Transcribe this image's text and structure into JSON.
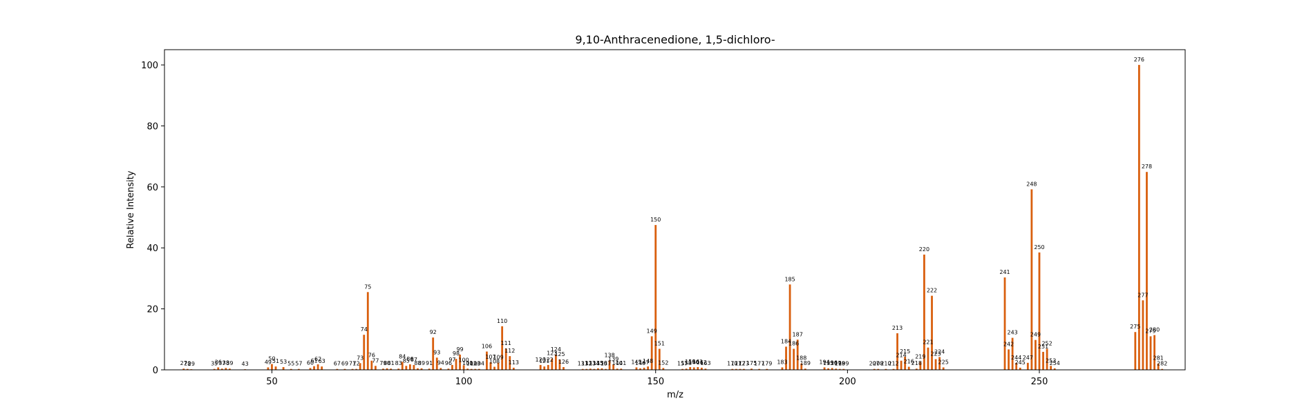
{
  "chart_data": {
    "type": "bar",
    "title": "9,10-Anthracenedione, 1,5-dichloro-",
    "xlabel": "m/z",
    "ylabel": "Relative Intensity",
    "xlim": [
      22,
      288
    ],
    "ylim": [
      0,
      105
    ],
    "xticks": [
      50,
      100,
      150,
      200,
      250
    ],
    "yticks": [
      0,
      20,
      40,
      60,
      80,
      100
    ],
    "grid": false,
    "bar_color": "#d95f0e",
    "peaks": [
      {
        "mz": 27,
        "intensity": 0.4
      },
      {
        "mz": 28,
        "intensity": 0.3
      },
      {
        "mz": 29,
        "intensity": 0.2
      },
      {
        "mz": 35,
        "intensity": 0.3
      },
      {
        "mz": 36,
        "intensity": 0.8
      },
      {
        "mz": 37,
        "intensity": 0.4
      },
      {
        "mz": 38,
        "intensity": 0.6
      },
      {
        "mz": 39,
        "intensity": 0.4
      },
      {
        "mz": 43,
        "intensity": 0.2
      },
      {
        "mz": 49,
        "intensity": 0.8
      },
      {
        "mz": 50,
        "intensity": 1.9
      },
      {
        "mz": 51,
        "intensity": 1.1
      },
      {
        "mz": 53,
        "intensity": 0.9
      },
      {
        "mz": 55,
        "intensity": 0.3
      },
      {
        "mz": 57,
        "intensity": 0.3
      },
      {
        "mz": 60,
        "intensity": 0.6
      },
      {
        "mz": 61,
        "intensity": 1.2
      },
      {
        "mz": 62,
        "intensity": 1.8
      },
      {
        "mz": 63,
        "intensity": 1.1
      },
      {
        "mz": 67,
        "intensity": 0.3
      },
      {
        "mz": 69,
        "intensity": 0.3
      },
      {
        "mz": 71,
        "intensity": 0.3
      },
      {
        "mz": 72,
        "intensity": 0.3
      },
      {
        "mz": 73,
        "intensity": 2.2
      },
      {
        "mz": 74,
        "intensity": 11.5
      },
      {
        "mz": 75,
        "intensity": 25.5
      },
      {
        "mz": 76,
        "intensity": 3.0
      },
      {
        "mz": 77,
        "intensity": 1.3
      },
      {
        "mz": 79,
        "intensity": 0.4
      },
      {
        "mz": 80,
        "intensity": 0.5
      },
      {
        "mz": 81,
        "intensity": 0.4
      },
      {
        "mz": 83,
        "intensity": 0.4
      },
      {
        "mz": 84,
        "intensity": 2.6
      },
      {
        "mz": 85,
        "intensity": 1.3
      },
      {
        "mz": 86,
        "intensity": 1.8
      },
      {
        "mz": 87,
        "intensity": 1.6
      },
      {
        "mz": 88,
        "intensity": 0.5
      },
      {
        "mz": 89,
        "intensity": 0.5
      },
      {
        "mz": 91,
        "intensity": 0.4
      },
      {
        "mz": 92,
        "intensity": 10.6
      },
      {
        "mz": 93,
        "intensity": 4.0
      },
      {
        "mz": 94,
        "intensity": 0.6
      },
      {
        "mz": 96,
        "intensity": 0.4
      },
      {
        "mz": 97,
        "intensity": 1.6
      },
      {
        "mz": 98,
        "intensity": 3.6
      },
      {
        "mz": 99,
        "intensity": 5.0
      },
      {
        "mz": 100,
        "intensity": 1.5
      },
      {
        "mz": 101,
        "intensity": 0.4
      },
      {
        "mz": 102,
        "intensity": 0.3
      },
      {
        "mz": 103,
        "intensity": 0.3
      },
      {
        "mz": 104,
        "intensity": 0.3
      },
      {
        "mz": 106,
        "intensity": 6.0
      },
      {
        "mz": 107,
        "intensity": 2.5
      },
      {
        "mz": 108,
        "intensity": 1.0
      },
      {
        "mz": 109,
        "intensity": 2.4
      },
      {
        "mz": 110,
        "intensity": 14.3
      },
      {
        "mz": 111,
        "intensity": 7.0
      },
      {
        "mz": 112,
        "intensity": 4.5
      },
      {
        "mz": 113,
        "intensity": 0.7
      },
      {
        "mz": 120,
        "intensity": 1.6
      },
      {
        "mz": 121,
        "intensity": 1.1
      },
      {
        "mz": 122,
        "intensity": 1.6
      },
      {
        "mz": 123,
        "intensity": 3.7
      },
      {
        "mz": 124,
        "intensity": 5.0
      },
      {
        "mz": 125,
        "intensity": 3.4
      },
      {
        "mz": 126,
        "intensity": 0.9
      },
      {
        "mz": 131,
        "intensity": 0.3
      },
      {
        "mz": 132,
        "intensity": 0.3
      },
      {
        "mz": 133,
        "intensity": 0.4
      },
      {
        "mz": 134,
        "intensity": 0.3
      },
      {
        "mz": 135,
        "intensity": 0.5
      },
      {
        "mz": 136,
        "intensity": 0.5
      },
      {
        "mz": 137,
        "intensity": 0.3
      },
      {
        "mz": 138,
        "intensity": 3.1
      },
      {
        "mz": 139,
        "intensity": 1.8
      },
      {
        "mz": 140,
        "intensity": 0.4
      },
      {
        "mz": 141,
        "intensity": 0.4
      },
      {
        "mz": 145,
        "intensity": 0.8
      },
      {
        "mz": 146,
        "intensity": 0.5
      },
      {
        "mz": 147,
        "intensity": 0.7
      },
      {
        "mz": 148,
        "intensity": 1.1
      },
      {
        "mz": 149,
        "intensity": 11.0
      },
      {
        "mz": 150,
        "intensity": 47.5
      },
      {
        "mz": 151,
        "intensity": 6.9
      },
      {
        "mz": 152,
        "intensity": 0.6
      },
      {
        "mz": 157,
        "intensity": 0.3
      },
      {
        "mz": 158,
        "intensity": 0.4
      },
      {
        "mz": 159,
        "intensity": 0.9
      },
      {
        "mz": 160,
        "intensity": 0.8
      },
      {
        "mz": 161,
        "intensity": 0.9
      },
      {
        "mz": 162,
        "intensity": 0.7
      },
      {
        "mz": 163,
        "intensity": 0.4
      },
      {
        "mz": 170,
        "intensity": 0.3
      },
      {
        "mz": 171,
        "intensity": 0.3
      },
      {
        "mz": 172,
        "intensity": 0.3
      },
      {
        "mz": 173,
        "intensity": 0.3
      },
      {
        "mz": 175,
        "intensity": 0.4
      },
      {
        "mz": 177,
        "intensity": 0.3
      },
      {
        "mz": 179,
        "intensity": 0.3
      },
      {
        "mz": 183,
        "intensity": 0.8
      },
      {
        "mz": 184,
        "intensity": 7.6
      },
      {
        "mz": 185,
        "intensity": 28.0
      },
      {
        "mz": 186,
        "intensity": 6.9
      },
      {
        "mz": 187,
        "intensity": 9.9
      },
      {
        "mz": 188,
        "intensity": 2.1
      },
      {
        "mz": 189,
        "intensity": 0.4
      },
      {
        "mz": 194,
        "intensity": 0.8
      },
      {
        "mz": 195,
        "intensity": 0.5
      },
      {
        "mz": 196,
        "intensity": 0.6
      },
      {
        "mz": 197,
        "intensity": 0.4
      },
      {
        "mz": 198,
        "intensity": 0.3
      },
      {
        "mz": 199,
        "intensity": 0.3
      },
      {
        "mz": 207,
        "intensity": 0.3
      },
      {
        "mz": 208,
        "intensity": 0.3
      },
      {
        "mz": 210,
        "intensity": 0.3
      },
      {
        "mz": 212,
        "intensity": 0.3
      },
      {
        "mz": 213,
        "intensity": 12.0
      },
      {
        "mz": 214,
        "intensity": 3.0
      },
      {
        "mz": 215,
        "intensity": 4.3
      },
      {
        "mz": 216,
        "intensity": 1.0
      },
      {
        "mz": 218,
        "intensity": 0.4
      },
      {
        "mz": 219,
        "intensity": 2.6
      },
      {
        "mz": 220,
        "intensity": 37.8
      },
      {
        "mz": 221,
        "intensity": 7.3
      },
      {
        "mz": 222,
        "intensity": 24.3
      },
      {
        "mz": 223,
        "intensity": 3.5
      },
      {
        "mz": 224,
        "intensity": 4.2
      },
      {
        "mz": 225,
        "intensity": 0.8
      },
      {
        "mz": 241,
        "intensity": 30.3
      },
      {
        "mz": 242,
        "intensity": 6.7
      },
      {
        "mz": 243,
        "intensity": 10.5
      },
      {
        "mz": 244,
        "intensity": 2.3
      },
      {
        "mz": 245,
        "intensity": 0.7
      },
      {
        "mz": 247,
        "intensity": 2.3
      },
      {
        "mz": 248,
        "intensity": 59.2
      },
      {
        "mz": 249,
        "intensity": 9.8
      },
      {
        "mz": 250,
        "intensity": 38.5
      },
      {
        "mz": 251,
        "intensity": 5.9
      },
      {
        "mz": 252,
        "intensity": 6.9
      },
      {
        "mz": 253,
        "intensity": 1.3
      },
      {
        "mz": 254,
        "intensity": 0.5
      },
      {
        "mz": 275,
        "intensity": 12.4
      },
      {
        "mz": 276,
        "intensity": 100.0
      },
      {
        "mz": 277,
        "intensity": 22.8
      },
      {
        "mz": 278,
        "intensity": 64.9
      },
      {
        "mz": 279,
        "intensity": 11.0
      },
      {
        "mz": 280,
        "intensity": 11.4
      },
      {
        "mz": 281,
        "intensity": 2.1
      },
      {
        "mz": 282,
        "intensity": 0.3
      }
    ]
  }
}
